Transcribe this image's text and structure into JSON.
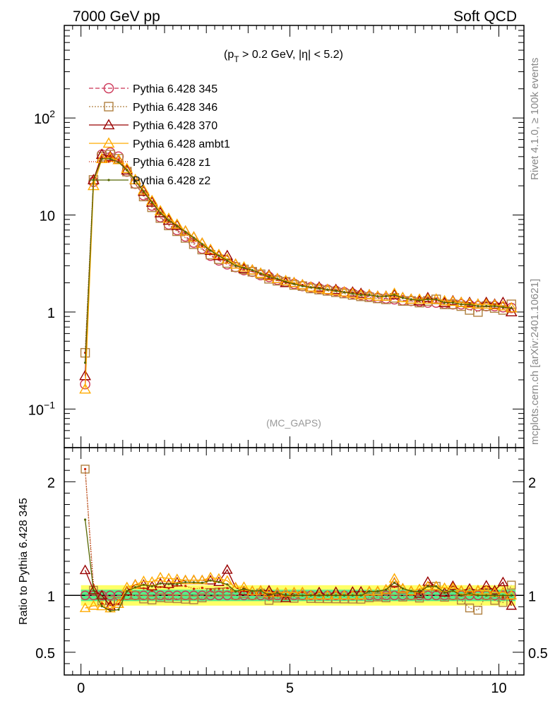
{
  "header": {
    "left_title": "7000 GeV pp",
    "right_title": "Soft QCD"
  },
  "side_labels": {
    "rivet": "Rivet 4.1.0, ≥ 100k events",
    "mcplots": "mcplots.cern.ch [arXiv:2401.10621]"
  },
  "chart_data": {
    "type": "line",
    "cut_label": "(p_T > 0.2 GeV, |η| < 5.2)",
    "cut_parts": {
      "open": "(p",
      "sub": "T",
      "mid": " > 0.2 GeV, ",
      "eta": "η",
      "close": "| < 5.2)"
    },
    "watermark": "(MC_GAPS)",
    "xlim": [
      -0.4,
      10.6
    ],
    "ylim_main": [
      0.04,
      900
    ],
    "ylim_ratio": [
      0.3,
      2.3
    ],
    "yscale_main": "log",
    "ylabel_ratio": "Ratio to Pythia 6.428 345",
    "x_ticks": [
      0,
      5,
      10
    ],
    "x_tick_labels": [
      "0",
      "5",
      "10"
    ],
    "y_main_ticks": [
      {
        "value": 0.1,
        "base": "10",
        "exp": "−1"
      },
      {
        "value": 1,
        "base": "1",
        "exp": ""
      },
      {
        "value": 10,
        "base": "10",
        "exp": ""
      },
      {
        "value": 100,
        "base": "10",
        "exp": "2"
      }
    ],
    "y_ratio_ticks": [
      0.5,
      1,
      2
    ],
    "y_ratio_tick_labels": [
      "0.5",
      "1",
      "2"
    ],
    "x": [
      0.1,
      0.3,
      0.5,
      0.7,
      0.9,
      1.1,
      1.3,
      1.5,
      1.7,
      1.9,
      2.1,
      2.3,
      2.5,
      2.7,
      2.9,
      3.1,
      3.3,
      3.5,
      3.7,
      3.9,
      4.1,
      4.3,
      4.5,
      4.7,
      4.9,
      5.1,
      5.3,
      5.5,
      5.7,
      5.9,
      6.1,
      6.3,
      6.5,
      6.7,
      6.9,
      7.1,
      7.3,
      7.5,
      7.7,
      7.9,
      8.1,
      8.3,
      8.5,
      8.7,
      8.9,
      9.1,
      9.3,
      9.5,
      9.7,
      9.9,
      10.1,
      10.3
    ],
    "series": [
      {
        "name": "Pythia 6.428 345",
        "color": "#cc3355",
        "marker": "circle",
        "dash": "6,3",
        "values": [
          0.18,
          22,
          42,
          44,
          40,
          28,
          21,
          16,
          12.5,
          9.5,
          8,
          7,
          6,
          5.2,
          4.5,
          3.8,
          3.4,
          3.1,
          2.9,
          2.7,
          2.6,
          2.4,
          2.3,
          2.15,
          2.05,
          1.95,
          1.85,
          1.8,
          1.75,
          1.7,
          1.65,
          1.6,
          1.55,
          1.5,
          1.45,
          1.4,
          1.38,
          1.35,
          1.32,
          1.3,
          1.28,
          1.25,
          1.25,
          1.22,
          1.2,
          1.2,
          1.18,
          1.15,
          1.15,
          1.15,
          1.12,
          1.1
        ]
      },
      {
        "name": "Pythia 6.428 346",
        "color": "#b08040",
        "marker": "square",
        "dash": "2,2",
        "values": [
          0.38,
          23,
          40,
          42,
          38,
          28,
          21,
          15.5,
          12,
          9.3,
          7.8,
          6.8,
          5.8,
          5,
          4.4,
          3.9,
          3.5,
          3.2,
          2.9,
          2.75,
          2.6,
          2.45,
          2.2,
          2.1,
          2.05,
          1.9,
          1.85,
          1.75,
          1.7,
          1.65,
          1.6,
          1.55,
          1.5,
          1.45,
          1.42,
          1.38,
          1.35,
          1.4,
          1.3,
          1.3,
          1.25,
          1.3,
          1.35,
          1.2,
          1.2,
          1.15,
          1.05,
          1.0,
          1.15,
          1.1,
          1.05,
          1.2
        ]
      },
      {
        "name": "Pythia 6.428 370",
        "color": "#990000",
        "marker": "triangle",
        "dash": "",
        "values": [
          0.22,
          23,
          42,
          40,
          37,
          29,
          23,
          17.5,
          13.5,
          10.5,
          8.8,
          7.8,
          6.8,
          5.9,
          5.1,
          4.3,
          3.8,
          3.8,
          3.1,
          2.8,
          2.7,
          2.5,
          2.4,
          2.2,
          2.0,
          2.0,
          1.9,
          1.8,
          1.8,
          1.7,
          1.7,
          1.6,
          1.6,
          1.55,
          1.5,
          1.45,
          1.45,
          1.5,
          1.4,
          1.35,
          1.3,
          1.4,
          1.35,
          1.25,
          1.3,
          1.25,
          1.25,
          1.2,
          1.25,
          1.2,
          1.25,
          1.0
        ]
      },
      {
        "name": "Pythia 6.428 ambt1",
        "color": "#ffaa00",
        "marker": "triangle",
        "dash": "",
        "values": [
          0.16,
          20,
          38,
          39,
          37,
          30,
          23,
          18,
          14,
          11,
          9.2,
          8,
          6.8,
          5.9,
          5.1,
          4.4,
          3.9,
          3.5,
          3.1,
          2.9,
          2.7,
          2.5,
          2.35,
          2.2,
          2.1,
          2.0,
          1.9,
          1.8,
          1.75,
          1.7,
          1.65,
          1.6,
          1.55,
          1.5,
          1.5,
          1.45,
          1.45,
          1.55,
          1.4,
          1.35,
          1.35,
          1.35,
          1.35,
          1.3,
          1.28,
          1.25,
          1.22,
          1.2,
          1.2,
          1.18,
          1.15,
          1.1
        ]
      },
      {
        "name": "Pythia 6.428 z1",
        "color": "#cc2200",
        "marker": "dot",
        "dash": "1,2",
        "values": [
          0.38,
          24,
          39,
          41,
          37,
          29,
          22.5,
          17,
          13,
          10.2,
          8.5,
          7.6,
          6.5,
          5.5,
          4.8,
          4.0,
          3.6,
          3.3,
          3.0,
          2.8,
          2.65,
          2.45,
          2.25,
          2.15,
          2.0,
          1.95,
          1.9,
          1.8,
          1.75,
          1.7,
          1.65,
          1.6,
          1.55,
          1.5,
          1.5,
          1.45,
          1.45,
          1.45,
          1.4,
          1.35,
          1.3,
          1.35,
          1.3,
          1.25,
          1.25,
          1.2,
          1.2,
          1.15,
          1.15,
          1.15,
          1.1,
          1.1
        ]
      },
      {
        "name": "Pythia 6.428 z2",
        "color": "#556600",
        "marker": "dot",
        "dash": "",
        "values": [
          0.3,
          23,
          38,
          38,
          35,
          29,
          22.5,
          17.5,
          13.5,
          10.5,
          8.8,
          7.7,
          6.7,
          5.8,
          5.0,
          4.3,
          3.8,
          3.4,
          3.0,
          2.85,
          2.7,
          2.5,
          2.3,
          2.2,
          2.05,
          1.95,
          1.85,
          1.8,
          1.75,
          1.7,
          1.65,
          1.6,
          1.55,
          1.5,
          1.5,
          1.45,
          1.45,
          1.5,
          1.4,
          1.35,
          1.32,
          1.35,
          1.35,
          1.25,
          1.25,
          1.2,
          1.2,
          1.15,
          1.15,
          1.15,
          1.12,
          1.1
        ]
      }
    ],
    "ratio_band": {
      "reference": "Pythia 6.428 345",
      "inner_color": "#55ee88",
      "outer_color": "#ffff66",
      "inner_half_width": 0.05,
      "outer_half_width": 0.09
    }
  }
}
